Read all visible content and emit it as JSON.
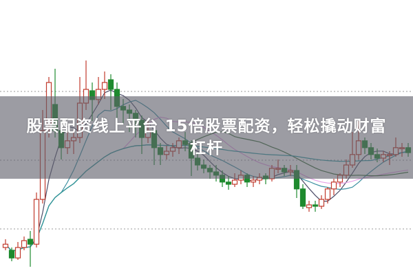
{
  "banner": {
    "line1": "股票配资线上平台 15倍股票配资，轻松撬动财富",
    "line2": "杠杆"
  },
  "chart_data": {
    "type": "candlestick",
    "title": "",
    "xlabel": "",
    "ylabel": "",
    "grid": "dotted horizontal",
    "gridlines": [
      16.75,
      41.75,
      66.75
    ],
    "ylim": [
      0,
      100
    ],
    "colors": {
      "up": "#c0392b",
      "down": "#1e8a2e",
      "ma5": "#4a4a66",
      "ma10": "#3a8fa0",
      "ma20": "#e6a0e6",
      "ma30": "#3c6e3c",
      "ma60": "#2a9aa0",
      "grid": "#999999"
    },
    "moving_averages": [
      "ma5",
      "ma10",
      "ma20",
      "ma30",
      "ma60"
    ],
    "candles": [
      [
        10,
        13,
        9,
        11.2
      ],
      [
        9,
        10,
        5,
        6.2
      ],
      [
        6.2,
        12,
        5.5,
        10
      ],
      [
        10,
        14,
        9,
        12.5
      ],
      [
        13,
        16,
        3,
        11.2
      ],
      [
        11.2,
        30,
        10,
        27.5
      ],
      [
        27.5,
        60,
        26,
        52.5
      ],
      [
        55,
        72,
        50,
        70
      ],
      [
        62,
        75,
        50,
        52.5
      ],
      [
        52.5,
        56,
        42,
        46.3
      ],
      [
        46.3,
        52,
        44,
        48.8
      ],
      [
        48.8,
        52,
        44,
        50
      ],
      [
        50,
        72,
        48,
        62.5
      ],
      [
        62.5,
        78,
        60,
        67.5
      ],
      [
        67,
        70,
        56,
        63.8
      ],
      [
        63.8,
        72,
        62,
        67.5
      ],
      [
        67.5,
        74,
        64,
        70
      ],
      [
        71,
        73,
        60,
        67.5
      ],
      [
        67.5,
        70,
        56,
        61.3
      ],
      [
        61.3,
        64,
        55,
        60
      ],
      [
        60,
        62,
        52,
        58.8
      ],
      [
        58.8,
        60,
        50,
        56.3
      ],
      [
        56.3,
        58,
        44,
        50
      ],
      [
        50,
        56,
        48,
        52.5
      ],
      [
        52.5,
        54,
        40,
        46.3
      ],
      [
        46.3,
        48,
        40,
        43.8
      ],
      [
        43.8,
        47,
        42,
        45
      ],
      [
        45,
        48,
        43,
        46.3
      ],
      [
        46.3,
        50,
        44,
        48.8
      ],
      [
        48.8,
        52,
        45,
        47.5
      ],
      [
        47.5,
        49,
        36,
        42.5
      ],
      [
        42.5,
        44,
        38,
        40
      ],
      [
        40,
        42,
        37,
        38.8
      ],
      [
        38.8,
        40,
        35,
        37.5
      ],
      [
        37.5,
        40,
        34,
        36.3
      ],
      [
        36.3,
        38,
        32,
        33.8
      ],
      [
        33.8,
        36,
        31,
        33
      ],
      [
        33,
        37,
        32,
        34.5
      ],
      [
        34.5,
        38,
        33,
        36.3
      ],
      [
        36.3,
        37,
        32,
        33.8
      ],
      [
        33.8,
        36,
        32,
        34.5
      ],
      [
        34.5,
        37,
        33,
        35.5
      ],
      [
        36,
        37,
        33,
        35
      ],
      [
        35,
        40,
        34,
        38.8
      ],
      [
        38.5,
        42,
        37,
        38.8
      ],
      [
        38.8,
        40,
        36,
        37.5
      ],
      [
        37.5,
        40,
        36,
        38
      ],
      [
        38,
        40,
        28,
        31.3
      ],
      [
        31.3,
        33,
        24,
        25
      ],
      [
        24.5,
        27,
        23,
        25.5
      ],
      [
        25.5,
        27,
        23,
        25
      ],
      [
        25,
        29,
        24,
        27.5
      ],
      [
        27.5,
        32,
        26,
        31.3
      ],
      [
        31.3,
        35,
        29,
        33.8
      ],
      [
        33.8,
        37,
        32,
        36.3
      ],
      [
        36.3,
        42,
        35,
        40
      ],
      [
        40,
        52,
        39,
        43.8
      ],
      [
        43.8,
        56,
        42,
        48.8
      ],
      [
        48.8,
        50,
        44,
        46.3
      ],
      [
        46.3,
        48,
        42,
        43.8
      ],
      [
        43.8,
        46,
        41,
        42.5
      ],
      [
        42.5,
        45,
        41,
        43.8
      ],
      [
        43.8,
        45,
        40,
        43.8
      ],
      [
        43.8,
        50,
        43,
        46.3
      ],
      [
        46.3,
        48,
        43,
        46.3
      ],
      [
        46.3,
        48,
        43,
        44.5
      ]
    ]
  }
}
